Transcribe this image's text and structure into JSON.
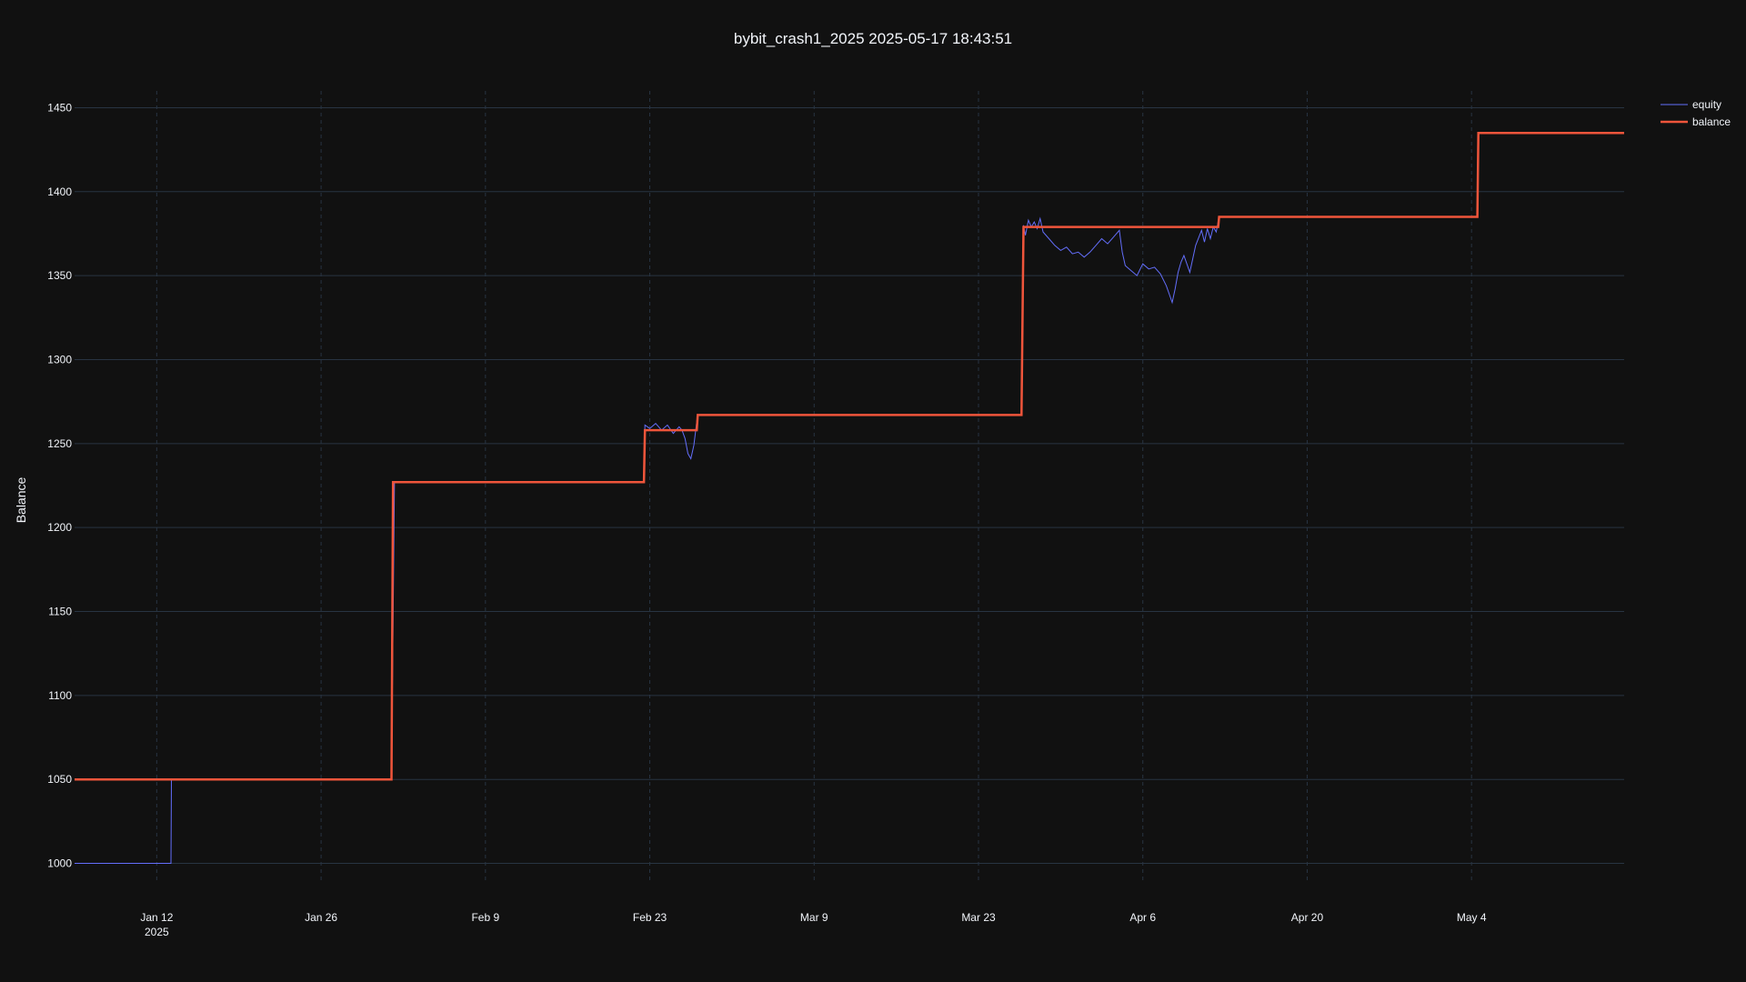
{
  "chart_data": {
    "type": "line",
    "title": "bybit_crash1_2025 2025-05-17 18:43:51",
    "ylabel": "Balance",
    "xlabel": "",
    "xlim": [
      "2025-01-05",
      "2025-05-17"
    ],
    "ylim": [
      990,
      1460
    ],
    "yticks": [
      1000,
      1050,
      1100,
      1150,
      1200,
      1250,
      1300,
      1350,
      1400,
      1450
    ],
    "xticks": [
      {
        "date": "2025-01-12",
        "label": "Jan 12",
        "sublabel": "2025"
      },
      {
        "date": "2025-01-26",
        "label": "Jan 26",
        "sublabel": ""
      },
      {
        "date": "2025-02-09",
        "label": "Feb 9",
        "sublabel": ""
      },
      {
        "date": "2025-02-23",
        "label": "Feb 23",
        "sublabel": ""
      },
      {
        "date": "2025-03-09",
        "label": "Mar 9",
        "sublabel": ""
      },
      {
        "date": "2025-03-23",
        "label": "Mar 23",
        "sublabel": ""
      },
      {
        "date": "2025-04-06",
        "label": "Apr 6",
        "sublabel": ""
      },
      {
        "date": "2025-04-20",
        "label": "Apr 20",
        "sublabel": ""
      },
      {
        "date": "2025-05-04",
        "label": "May 4",
        "sublabel": ""
      }
    ],
    "grid": true,
    "legend_position": "top-right",
    "series": [
      {
        "name": "equity",
        "color": "#636efa",
        "points": [
          [
            "2025-01-05T00:00",
            1000
          ],
          [
            "2025-01-13T05:00",
            1000
          ],
          [
            "2025-01-13T06:00",
            1050
          ],
          [
            "2025-02-01T00:00",
            1050
          ],
          [
            "2025-02-01T06:00",
            1227
          ],
          [
            "2025-02-22T12:00",
            1227
          ],
          [
            "2025-02-22T14:00",
            1261
          ],
          [
            "2025-02-23T00:00",
            1259
          ],
          [
            "2025-02-23T12:00",
            1262
          ],
          [
            "2025-02-24T00:00",
            1258
          ],
          [
            "2025-02-24T12:00",
            1261
          ],
          [
            "2025-02-25T00:00",
            1256
          ],
          [
            "2025-02-25T12:00",
            1260
          ],
          [
            "2025-02-25T18:00",
            1258
          ],
          [
            "2025-02-26T00:00",
            1253
          ],
          [
            "2025-02-26T06:00",
            1244
          ],
          [
            "2025-02-26T12:00",
            1241
          ],
          [
            "2025-02-26T18:00",
            1249
          ],
          [
            "2025-02-27T00:00",
            1263
          ],
          [
            "2025-02-27T02:00",
            1267
          ],
          [
            "2025-03-26T16:00",
            1267
          ],
          [
            "2025-03-26T20:00",
            1380
          ],
          [
            "2025-03-27T00:00",
            1374
          ],
          [
            "2025-03-27T06:00",
            1383
          ],
          [
            "2025-03-27T12:00",
            1379
          ],
          [
            "2025-03-27T18:00",
            1382
          ],
          [
            "2025-03-28T00:00",
            1378
          ],
          [
            "2025-03-28T06:00",
            1384
          ],
          [
            "2025-03-28T12:00",
            1376
          ],
          [
            "2025-03-29T00:00",
            1372
          ],
          [
            "2025-03-29T12:00",
            1368
          ],
          [
            "2025-03-30T00:00",
            1365
          ],
          [
            "2025-03-30T12:00",
            1367
          ],
          [
            "2025-03-31T00:00",
            1363
          ],
          [
            "2025-03-31T12:00",
            1364
          ],
          [
            "2025-04-01T00:00",
            1361
          ],
          [
            "2025-04-01T12:00",
            1364
          ],
          [
            "2025-04-02T00:00",
            1368
          ],
          [
            "2025-04-02T12:00",
            1372
          ],
          [
            "2025-04-03T00:00",
            1369
          ],
          [
            "2025-04-03T12:00",
            1373
          ],
          [
            "2025-04-04T00:00",
            1377
          ],
          [
            "2025-04-04T06:00",
            1364
          ],
          [
            "2025-04-04T12:00",
            1356
          ],
          [
            "2025-04-05T00:00",
            1353
          ],
          [
            "2025-04-05T12:00",
            1350
          ],
          [
            "2025-04-06T00:00",
            1357
          ],
          [
            "2025-04-06T12:00",
            1354
          ],
          [
            "2025-04-07T00:00",
            1355
          ],
          [
            "2025-04-07T12:00",
            1351
          ],
          [
            "2025-04-08T00:00",
            1344
          ],
          [
            "2025-04-08T06:00",
            1339
          ],
          [
            "2025-04-08T12:00",
            1334
          ],
          [
            "2025-04-08T18:00",
            1342
          ],
          [
            "2025-04-09T00:00",
            1352
          ],
          [
            "2025-04-09T06:00",
            1358
          ],
          [
            "2025-04-09T12:00",
            1362
          ],
          [
            "2025-04-10T00:00",
            1352
          ],
          [
            "2025-04-10T12:00",
            1368
          ],
          [
            "2025-04-11T00:00",
            1377
          ],
          [
            "2025-04-11T06:00",
            1370
          ],
          [
            "2025-04-11T12:00",
            1378
          ],
          [
            "2025-04-11T18:00",
            1372
          ],
          [
            "2025-04-12T00:00",
            1379
          ],
          [
            "2025-04-12T06:00",
            1376
          ],
          [
            "2025-04-12T12:00",
            1385
          ],
          [
            "2025-05-04T12:00",
            1385
          ],
          [
            "2025-05-04T14:00",
            1435
          ],
          [
            "2025-05-17T00:00",
            1435
          ]
        ]
      },
      {
        "name": "balance",
        "color": "#ef553b",
        "points": [
          [
            "2025-01-05T00:00",
            1050
          ],
          [
            "2025-02-01T00:00",
            1050
          ],
          [
            "2025-02-01T03:00",
            1227
          ],
          [
            "2025-02-22T12:00",
            1227
          ],
          [
            "2025-02-22T14:00",
            1258
          ],
          [
            "2025-02-27T00:00",
            1258
          ],
          [
            "2025-02-27T02:00",
            1267
          ],
          [
            "2025-03-26T16:00",
            1267
          ],
          [
            "2025-03-26T20:00",
            1379
          ],
          [
            "2025-04-12T10:00",
            1379
          ],
          [
            "2025-04-12T12:00",
            1385
          ],
          [
            "2025-05-04T12:00",
            1385
          ],
          [
            "2025-05-04T14:00",
            1435
          ],
          [
            "2025-05-17T00:00",
            1435
          ]
        ]
      }
    ]
  }
}
